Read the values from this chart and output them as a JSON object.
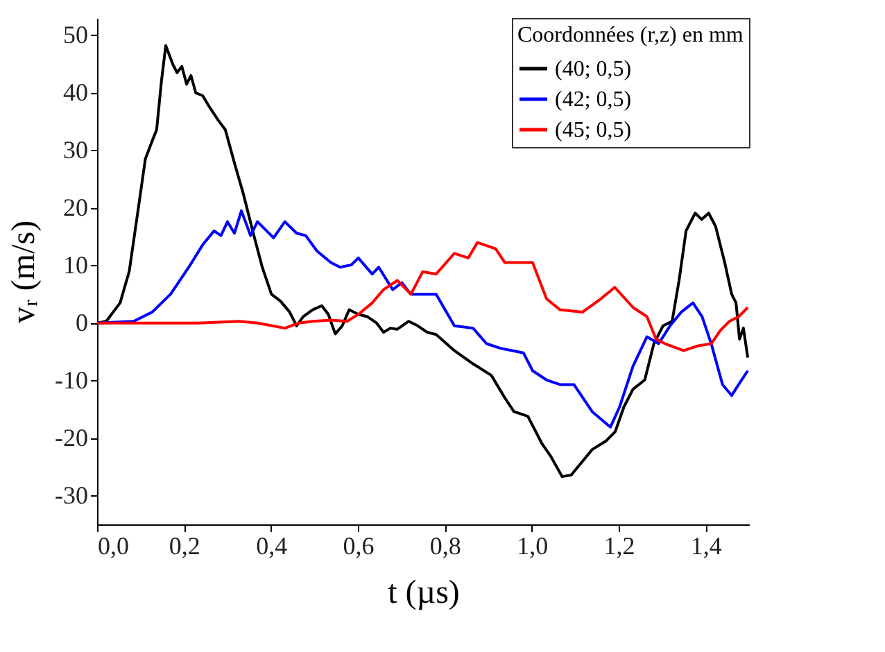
{
  "chart_data": {
    "type": "line",
    "xlabel": "t (µs)",
    "ylabel": "vᵣ (m/s)",
    "legend_title": "Coordonnées (r,z) en mm",
    "legend": "top right",
    "grid": false,
    "marker": "none",
    "line_style": "solid",
    "xlim": [
      0,
      1.5
    ],
    "ylim": [
      -35,
      53
    ],
    "xticks": [
      {
        "value": 0,
        "label": "0,0"
      },
      {
        "value": 0.2,
        "label": "0,2"
      },
      {
        "value": 0.4,
        "label": "0,4"
      },
      {
        "value": 0.6,
        "label": "0,6"
      },
      {
        "value": 0.8,
        "label": "0,8"
      },
      {
        "value": 1.0,
        "label": "1,0"
      },
      {
        "value": 1.2,
        "label": "1,2"
      },
      {
        "value": 1.4,
        "label": "1,4"
      }
    ],
    "yticks": [
      -30,
      -20,
      -10,
      0,
      10,
      20,
      30,
      40,
      50
    ],
    "series": [
      {
        "name": "(40; 0,5)",
        "color": "#000000",
        "x": [
          0,
          0.021,
          0.053,
          0.074,
          0.095,
          0.111,
          0.127,
          0.137,
          0.148,
          0.158,
          0.174,
          0.184,
          0.195,
          0.206,
          0.216,
          0.227,
          0.243,
          0.258,
          0.279,
          0.295,
          0.316,
          0.337,
          0.358,
          0.38,
          0.401,
          0.422,
          0.443,
          0.459,
          0.474,
          0.496,
          0.517,
          0.532,
          0.548,
          0.564,
          0.58,
          0.601,
          0.622,
          0.643,
          0.659,
          0.675,
          0.69,
          0.717,
          0.738,
          0.759,
          0.78,
          0.822,
          0.865,
          0.907,
          0.938,
          0.959,
          0.991,
          1.023,
          1.044,
          1.07,
          1.091,
          1.113,
          1.139,
          1.171,
          1.192,
          1.212,
          1.233,
          1.26,
          1.281,
          1.302,
          1.323,
          1.339,
          1.355,
          1.376,
          1.391,
          1.407,
          1.423,
          1.444,
          1.46,
          1.47,
          1.478,
          1.487,
          1.497
        ],
        "values": [
          0,
          0.3,
          3.5,
          9,
          20,
          28.5,
          31.7,
          33.6,
          42,
          48.2,
          45,
          43.5,
          44.6,
          41.5,
          43,
          40,
          39.5,
          37.6,
          35.2,
          33.6,
          27.8,
          22.3,
          16,
          9.7,
          5,
          3.8,
          1.9,
          -0.5,
          1.1,
          2.3,
          3,
          1.5,
          -1.9,
          -0.5,
          2.3,
          1.5,
          1.1,
          0,
          -1.6,
          -0.9,
          -1.1,
          0.3,
          -0.5,
          -1.6,
          -2,
          -4.8,
          -7.1,
          -9.1,
          -13,
          -15.4,
          -16.2,
          -20.9,
          -23.2,
          -26.7,
          -26.4,
          -24.4,
          -22,
          -20.5,
          -18.9,
          -14.6,
          -11.5,
          -9.9,
          -3.6,
          -0.5,
          0.3,
          7.4,
          16,
          19.1,
          18,
          19.1,
          16.8,
          10.5,
          5,
          3.5,
          -2.8,
          -0.9,
          -6
        ]
      },
      {
        "name": "(42; 0,5)",
        "color": "#0000ff",
        "x": [
          0,
          0.084,
          0.127,
          0.169,
          0.211,
          0.243,
          0.269,
          0.285,
          0.3,
          0.316,
          0.332,
          0.353,
          0.369,
          0.406,
          0.432,
          0.459,
          0.48,
          0.506,
          0.538,
          0.559,
          0.585,
          0.601,
          0.633,
          0.648,
          0.68,
          0.701,
          0.722,
          0.749,
          0.78,
          0.822,
          0.865,
          0.896,
          0.928,
          0.981,
          1.002,
          1.034,
          1.065,
          1.097,
          1.139,
          1.181,
          1.202,
          1.233,
          1.265,
          1.292,
          1.318,
          1.344,
          1.371,
          1.392,
          1.413,
          1.439,
          1.46,
          1.476,
          1.497
        ],
        "values": [
          0,
          0.3,
          1.9,
          5,
          9.7,
          13.6,
          16,
          15.2,
          17.6,
          15.6,
          19.5,
          15.2,
          17.6,
          14.8,
          17.6,
          15.6,
          15.2,
          12.5,
          10.5,
          9.7,
          10.1,
          11.3,
          8.5,
          9.7,
          5.8,
          7,
          5,
          5,
          5,
          -0.5,
          -0.9,
          -3.6,
          -4.4,
          -5.2,
          -8.3,
          -9.9,
          -10.7,
          -10.7,
          -15.4,
          -18.1,
          -14.6,
          -7.5,
          -2.4,
          -3.6,
          -0.5,
          1.9,
          3.5,
          1.1,
          -3.6,
          -10.7,
          -12.6,
          -10.7,
          -8.3
        ]
      },
      {
        "name": "(45; 0,5)",
        "color": "#ff0000",
        "x": [
          0,
          0.232,
          0.327,
          0.369,
          0.432,
          0.464,
          0.496,
          0.538,
          0.575,
          0.601,
          0.633,
          0.659,
          0.691,
          0.722,
          0.749,
          0.78,
          0.822,
          0.854,
          0.875,
          0.917,
          0.938,
          0.969,
          1.002,
          1.034,
          1.065,
          1.117,
          1.159,
          1.191,
          1.233,
          1.265,
          1.286,
          1.307,
          1.349,
          1.381,
          1.413,
          1.434,
          1.455,
          1.476,
          1.497
        ],
        "values": [
          0,
          0,
          0.3,
          0,
          -0.9,
          0,
          0.3,
          0.5,
          0.3,
          1.5,
          3.5,
          5.8,
          7.4,
          5,
          8.9,
          8.5,
          12.1,
          11.3,
          14,
          12.9,
          10.5,
          10.5,
          10.5,
          4.2,
          2.3,
          1.9,
          4.2,
          6.2,
          2.7,
          1.1,
          -2.8,
          -3.6,
          -4.8,
          -4,
          -3.6,
          -1.3,
          0.3,
          1.1,
          2.7
        ]
      }
    ]
  }
}
